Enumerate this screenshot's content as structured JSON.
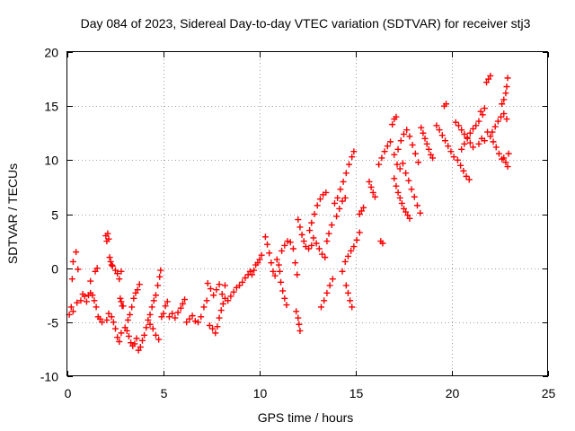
{
  "chart_data": {
    "type": "scatter",
    "title": "Day 084 of 2023, Sidereal Day-to-day VTEC variation (SDTVAR) for receiver stj3",
    "xlabel": "GPS time / hours",
    "ylabel": "SDTVAR / TECUs",
    "xlim": [
      0,
      25
    ],
    "ylim": [
      -10,
      20
    ],
    "x_ticks": [
      "0",
      "5",
      "10",
      "15",
      "20",
      "25"
    ],
    "y_ticks": [
      "-10",
      "-5",
      "0",
      "5",
      "10",
      "15",
      "20"
    ],
    "grid": true,
    "marker": "+",
    "color": "#ff0000",
    "series": [
      {
        "points": [
          [
            0.1,
            -4.3
          ],
          [
            0.2,
            -3.6
          ],
          [
            0.3,
            -4.0
          ],
          [
            0.25,
            -1.0
          ],
          [
            0.3,
            0.6
          ],
          [
            0.45,
            1.5
          ],
          [
            0.5,
            -3.2
          ],
          [
            0.55,
            -0.1
          ],
          [
            0.7,
            -3.0
          ],
          [
            0.8,
            -2.4
          ],
          [
            0.9,
            -2.6
          ],
          [
            1.0,
            -3.1
          ],
          [
            1.1,
            -2.5
          ],
          [
            1.2,
            -2.3
          ],
          [
            1.3,
            -2.5
          ],
          [
            1.4,
            -3.0
          ],
          [
            1.5,
            -3.6
          ],
          [
            1.2,
            -1.2
          ],
          [
            1.45,
            -0.3
          ],
          [
            1.55,
            0.0
          ],
          [
            1.6,
            -4.5
          ],
          [
            1.7,
            -4.7
          ],
          [
            1.8,
            -5.0
          ],
          [
            2.0,
            3.0
          ],
          [
            2.05,
            2.5
          ],
          [
            2.1,
            3.2
          ],
          [
            2.15,
            2.7
          ],
          [
            2.2,
            1.0
          ],
          [
            2.25,
            0.6
          ],
          [
            2.3,
            0.3
          ],
          [
            2.35,
            0.2
          ],
          [
            2.05,
            -4.8
          ],
          [
            2.15,
            -4.2
          ],
          [
            2.3,
            -4.5
          ],
          [
            2.4,
            -5.0
          ],
          [
            2.5,
            -5.6
          ],
          [
            2.6,
            -6.4
          ],
          [
            2.7,
            -6.8
          ],
          [
            2.8,
            -6.0
          ],
          [
            2.5,
            -0.2
          ],
          [
            2.6,
            -0.5
          ],
          [
            2.7,
            -1.0
          ],
          [
            2.8,
            -0.3
          ],
          [
            2.75,
            -2.8
          ],
          [
            2.8,
            -3.1
          ],
          [
            2.85,
            -3.5
          ],
          [
            2.9,
            -3.5
          ],
          [
            3.0,
            -5.5
          ],
          [
            3.1,
            -5.8
          ],
          [
            3.2,
            -6.3
          ],
          [
            3.3,
            -6.9
          ],
          [
            3.4,
            -7.2
          ],
          [
            3.5,
            -7.0
          ],
          [
            3.6,
            -6.5
          ],
          [
            3.7,
            -7.6
          ],
          [
            3.8,
            -7.3
          ],
          [
            3.15,
            -4.8
          ],
          [
            3.25,
            -4.3
          ],
          [
            3.35,
            -3.6
          ],
          [
            3.45,
            -2.8
          ],
          [
            3.55,
            -2.3
          ],
          [
            3.65,
            -2.0
          ],
          [
            3.75,
            -1.5
          ],
          [
            3.9,
            -6.7
          ],
          [
            4.0,
            -6.2
          ],
          [
            4.1,
            -5.5
          ],
          [
            4.2,
            -4.8
          ],
          [
            4.3,
            -4.3
          ],
          [
            4.4,
            -3.6
          ],
          [
            4.5,
            -3.0
          ],
          [
            4.6,
            -2.5
          ],
          [
            4.7,
            -1.6
          ],
          [
            4.8,
            -0.8
          ],
          [
            4.85,
            -0.2
          ],
          [
            4.3,
            -5.2
          ],
          [
            4.45,
            -5.6
          ],
          [
            4.6,
            -6.2
          ],
          [
            4.75,
            -6.6
          ],
          [
            4.9,
            -4.5
          ],
          [
            5.0,
            -4.2
          ],
          [
            5.1,
            -3.5
          ],
          [
            5.2,
            -3.1
          ],
          [
            5.3,
            -4.5
          ],
          [
            5.45,
            -4.2
          ],
          [
            5.6,
            -4.6
          ],
          [
            5.75,
            -4.1
          ],
          [
            5.9,
            -3.7
          ],
          [
            6.0,
            -3.3
          ],
          [
            6.1,
            -2.9
          ],
          [
            6.2,
            -5.0
          ],
          [
            6.35,
            -4.7
          ],
          [
            6.5,
            -4.4
          ],
          [
            6.65,
            -4.9
          ],
          [
            6.8,
            -5.0
          ],
          [
            6.95,
            -4.5
          ],
          [
            7.1,
            -3.6
          ],
          [
            7.25,
            -3.0
          ],
          [
            7.4,
            -5.3
          ],
          [
            7.55,
            -5.6
          ],
          [
            7.7,
            -6.0
          ],
          [
            7.8,
            -5.4
          ],
          [
            7.9,
            -4.6
          ],
          [
            8.0,
            -3.9
          ],
          [
            8.1,
            -3.3
          ],
          [
            8.2,
            -2.8
          ],
          [
            7.3,
            -1.4
          ],
          [
            7.45,
            -1.9
          ],
          [
            7.6,
            -2.5
          ],
          [
            7.75,
            -2.0
          ],
          [
            7.9,
            -1.5
          ],
          [
            8.05,
            -2.4
          ],
          [
            8.2,
            -1.6
          ],
          [
            8.35,
            -3.0
          ],
          [
            8.5,
            -2.6
          ],
          [
            8.65,
            -2.2
          ],
          [
            8.8,
            -1.8
          ],
          [
            8.95,
            -1.6
          ],
          [
            9.1,
            -1.3
          ],
          [
            9.25,
            -0.9
          ],
          [
            9.4,
            -0.6
          ],
          [
            9.5,
            -0.3
          ],
          [
            9.6,
            -0.6
          ],
          [
            9.7,
            -0.2
          ],
          [
            9.8,
            0.3
          ],
          [
            9.9,
            0.5
          ],
          [
            10.0,
            0.8
          ],
          [
            10.1,
            1.2
          ],
          [
            10.3,
            2.9
          ],
          [
            10.4,
            2.2
          ],
          [
            10.5,
            1.4
          ],
          [
            10.6,
            0.5
          ],
          [
            10.7,
            -0.3
          ],
          [
            10.8,
            -0.7
          ],
          [
            10.9,
            0.8
          ],
          [
            11.0,
            0.3
          ],
          [
            11.05,
            -0.3
          ],
          [
            11.1,
            -1.3
          ],
          [
            11.2,
            -2.1
          ],
          [
            11.3,
            -2.8
          ],
          [
            11.4,
            -3.4
          ],
          [
            11.15,
            1.6
          ],
          [
            11.3,
            2.1
          ],
          [
            11.45,
            2.5
          ],
          [
            11.6,
            2.4
          ],
          [
            11.75,
            1.8
          ],
          [
            11.85,
            0.5
          ],
          [
            11.95,
            -0.6
          ],
          [
            12.0,
            4.5
          ],
          [
            12.1,
            3.8
          ],
          [
            12.2,
            3.1
          ],
          [
            12.3,
            2.5
          ],
          [
            12.4,
            2.0
          ],
          [
            12.55,
            1.8
          ],
          [
            12.7,
            2.1
          ],
          [
            11.9,
            -4.0
          ],
          [
            12.0,
            -4.6
          ],
          [
            12.05,
            -5.2
          ],
          [
            12.1,
            -5.8
          ],
          [
            12.6,
            3.5
          ],
          [
            12.7,
            4.2
          ],
          [
            12.85,
            5.0
          ],
          [
            13.0,
            5.8
          ],
          [
            13.15,
            6.4
          ],
          [
            13.3,
            6.8
          ],
          [
            13.45,
            7.0
          ],
          [
            12.8,
            2.8
          ],
          [
            12.95,
            2.3
          ],
          [
            13.1,
            1.8
          ],
          [
            13.25,
            1.3
          ],
          [
            13.4,
            1.0
          ],
          [
            13.5,
            2.5
          ],
          [
            13.6,
            3.2
          ],
          [
            13.75,
            4.0
          ],
          [
            13.2,
            -3.6
          ],
          [
            13.35,
            -3.0
          ],
          [
            13.5,
            -2.3
          ],
          [
            13.65,
            -1.6
          ],
          [
            13.8,
            -1.0
          ],
          [
            13.9,
            6.0
          ],
          [
            14.05,
            6.5
          ],
          [
            14.2,
            7.3
          ],
          [
            14.35,
            8.0
          ],
          [
            14.5,
            8.8
          ],
          [
            14.65,
            9.6
          ],
          [
            14.8,
            10.3
          ],
          [
            14.9,
            10.8
          ],
          [
            14.0,
            4.8
          ],
          [
            14.15,
            5.5
          ],
          [
            14.3,
            6.2
          ],
          [
            14.45,
            6.5
          ],
          [
            14.3,
            -0.3
          ],
          [
            14.45,
            0.6
          ],
          [
            14.6,
            1.1
          ],
          [
            14.75,
            1.6
          ],
          [
            14.9,
            2.0
          ],
          [
            15.05,
            2.6
          ],
          [
            15.2,
            3.3
          ],
          [
            14.5,
            -1.6
          ],
          [
            14.6,
            -2.3
          ],
          [
            14.7,
            -3.0
          ],
          [
            14.8,
            -3.6
          ],
          [
            15.2,
            5.0
          ],
          [
            15.3,
            5.3
          ],
          [
            15.4,
            5.6
          ],
          [
            15.7,
            8.0
          ],
          [
            15.8,
            7.5
          ],
          [
            15.9,
            7.0
          ],
          [
            16.0,
            6.6
          ],
          [
            16.2,
            9.6
          ],
          [
            16.35,
            10.2
          ],
          [
            16.5,
            10.8
          ],
          [
            16.65,
            11.3
          ],
          [
            16.8,
            11.7
          ],
          [
            16.3,
            2.5
          ],
          [
            16.4,
            2.3
          ],
          [
            16.9,
            13.3
          ],
          [
            17.0,
            13.8
          ],
          [
            17.1,
            14.0
          ],
          [
            17.0,
            8.3
          ],
          [
            17.1,
            7.6
          ],
          [
            17.2,
            7.0
          ],
          [
            17.3,
            6.5
          ],
          [
            17.4,
            6.0
          ],
          [
            17.5,
            5.5
          ],
          [
            17.6,
            5.2
          ],
          [
            17.7,
            4.9
          ],
          [
            17.8,
            4.6
          ],
          [
            17.0,
            10.5
          ],
          [
            17.15,
            9.6
          ],
          [
            17.3,
            9.2
          ],
          [
            17.45,
            9.7
          ],
          [
            17.6,
            8.8
          ],
          [
            17.75,
            8.1
          ],
          [
            17.9,
            7.3
          ],
          [
            18.05,
            6.6
          ],
          [
            18.2,
            5.8
          ],
          [
            18.35,
            5.1
          ],
          [
            17.2,
            11.0
          ],
          [
            17.35,
            11.8
          ],
          [
            17.5,
            12.4
          ],
          [
            17.65,
            12.8
          ],
          [
            17.8,
            12.2
          ],
          [
            17.95,
            11.4
          ],
          [
            18.1,
            10.6
          ],
          [
            18.25,
            9.8
          ],
          [
            18.4,
            13.0
          ],
          [
            18.5,
            12.5
          ],
          [
            18.6,
            12.0
          ],
          [
            18.7,
            11.5
          ],
          [
            18.8,
            11.0
          ],
          [
            18.9,
            10.5
          ],
          [
            19.0,
            10.2
          ],
          [
            19.2,
            13.2
          ],
          [
            19.35,
            12.8
          ],
          [
            19.5,
            12.3
          ],
          [
            19.65,
            11.8
          ],
          [
            19.8,
            11.3
          ],
          [
            19.95,
            10.8
          ],
          [
            20.1,
            10.3
          ],
          [
            19.6,
            15.0
          ],
          [
            19.7,
            15.2
          ],
          [
            20.2,
            13.5
          ],
          [
            20.35,
            13.2
          ],
          [
            20.5,
            12.8
          ],
          [
            20.65,
            12.4
          ],
          [
            20.8,
            12.0
          ],
          [
            20.95,
            11.6
          ],
          [
            21.1,
            11.2
          ],
          [
            20.3,
            10.0
          ],
          [
            20.45,
            9.5
          ],
          [
            20.6,
            9.0
          ],
          [
            20.75,
            8.5
          ],
          [
            20.9,
            8.2
          ],
          [
            20.5,
            11.0
          ],
          [
            20.65,
            11.5
          ],
          [
            20.8,
            12.1
          ],
          [
            20.95,
            12.5
          ],
          [
            21.1,
            12.9
          ],
          [
            21.25,
            13.2
          ],
          [
            21.4,
            13.6
          ],
          [
            21.5,
            14.5
          ],
          [
            21.6,
            14.2
          ],
          [
            21.7,
            14.8
          ],
          [
            21.4,
            11.5
          ],
          [
            21.55,
            12.0
          ],
          [
            21.7,
            11.8
          ],
          [
            21.85,
            12.6
          ],
          [
            22.0,
            12.2
          ],
          [
            22.15,
            11.7
          ],
          [
            22.3,
            11.2
          ],
          [
            22.45,
            10.6
          ],
          [
            22.6,
            10.1
          ],
          [
            21.8,
            17.2
          ],
          [
            21.9,
            17.5
          ],
          [
            22.0,
            17.8
          ],
          [
            22.1,
            12.6
          ],
          [
            22.25,
            13.1
          ],
          [
            22.4,
            13.6
          ],
          [
            22.55,
            14.0
          ],
          [
            22.7,
            14.3
          ],
          [
            22.85,
            13.8
          ],
          [
            22.6,
            15.2
          ],
          [
            22.7,
            15.6
          ],
          [
            22.8,
            16.2
          ],
          [
            22.85,
            16.8
          ],
          [
            22.9,
            17.6
          ],
          [
            22.7,
            10.2
          ],
          [
            22.8,
            9.8
          ],
          [
            22.9,
            9.4
          ],
          [
            22.95,
            10.6
          ]
        ]
      }
    ]
  }
}
